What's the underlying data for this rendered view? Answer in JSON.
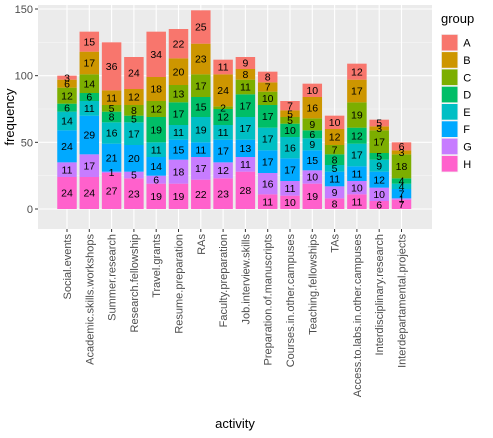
{
  "chart_data": {
    "type": "bar",
    "stacked": true,
    "xlabel": "activity",
    "ylabel": "frequency",
    "ylim": [
      0,
      150
    ],
    "yticks": [
      0,
      50,
      100,
      150
    ],
    "grid": true,
    "legend_title": "group",
    "legend_position": "right",
    "categories": [
      "Social.events",
      "Academic.skills.workshops",
      "Summer.research",
      "Research.fellowship",
      "Travel.grants",
      "Resume.preparation",
      "RAs",
      "Faculty.preparation",
      "Job.interview.skills",
      "Preparation.of.manuscripts",
      "Courses.in.other.campuses",
      "Teaching.fellowships",
      "TAs",
      "Access.to.labs.in.other.campuses",
      "Interdisciplinary.research",
      "Interdepartamental.projects"
    ],
    "series": [
      {
        "name": "A",
        "color": "#F8766D",
        "values": [
          3,
          15,
          36,
          24,
          34,
          22,
          25,
          11,
          9,
          8,
          7,
          10,
          10,
          12,
          5,
          6
        ]
      },
      {
        "name": "B",
        "color": "#CD9600",
        "values": [
          6,
          17,
          11,
          12,
          18,
          20,
          23,
          24,
          8,
          7,
          5,
          16,
          12,
          17,
          3,
          3
        ]
      },
      {
        "name": "C",
        "color": "#7CAE00",
        "values": [
          12,
          14,
          5,
          8,
          12,
          13,
          17,
          2,
          11,
          10,
          5,
          9,
          7,
          19,
          17,
          18
        ]
      },
      {
        "name": "D",
        "color": "#00BE67",
        "values": [
          6,
          6,
          8,
          5,
          19,
          17,
          15,
          12,
          17,
          17,
          10,
          6,
          8,
          12,
          5,
          4
        ]
      },
      {
        "name": "E",
        "color": "#00BFC4",
        "values": [
          14,
          11,
          16,
          17,
          11,
          11,
          19,
          11,
          17,
          17,
          16,
          9,
          5,
          17,
          9,
          4
        ]
      },
      {
        "name": "F",
        "color": "#00A9FF",
        "values": [
          24,
          29,
          21,
          20,
          14,
          15,
          11,
          17,
          13,
          17,
          17,
          15,
          11,
          11,
          12,
          7
        ]
      },
      {
        "name": "G",
        "color": "#C77CFF",
        "values": [
          11,
          17,
          1,
          5,
          6,
          18,
          17,
          12,
          11,
          16,
          11,
          10,
          9,
          10,
          10,
          1
        ]
      },
      {
        "name": "H",
        "color": "#FF61CC",
        "values": [
          24,
          24,
          27,
          23,
          19,
          19,
          22,
          23,
          28,
          11,
          10,
          19,
          8,
          11,
          6,
          7
        ]
      }
    ]
  }
}
